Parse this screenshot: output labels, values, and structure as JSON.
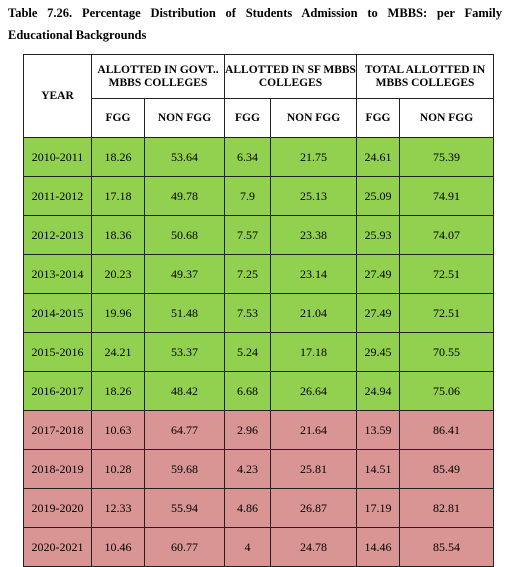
{
  "caption": {
    "text": "Table 7.26. Percentage Distribution of Students Admission to MBBS: per Family Educational Backgrounds"
  },
  "table": {
    "year_header": "YEAR",
    "groups": [
      {
        "label": "ALLOTTED IN GOVT.. MBBS COLLEGES"
      },
      {
        "label": "ALLOTTED IN SF MBBS COLLEGES"
      },
      {
        "label": "TOTAL ALLOTTED IN MBBS COLLEGES"
      }
    ],
    "subheaders": [
      "FGG",
      "NON FGG",
      "FGG",
      "NON FGG",
      "FGG",
      "NON FGG"
    ],
    "row_colors": {
      "highlight_a": "#92d050",
      "highlight_b": "#d99594"
    },
    "rows": [
      {
        "year": "2010-2011",
        "values": [
          "18.26",
          "53.64",
          "6.34",
          "21.75",
          "24.61",
          "75.39"
        ]
      },
      {
        "year": "2011-2012",
        "values": [
          "17.18",
          "49.78",
          "7.9",
          "25.13",
          "25.09",
          "74.91"
        ]
      },
      {
        "year": "2012-2013",
        "values": [
          "18.36",
          "50.68",
          "7.57",
          "23.38",
          "25.93",
          "74.07"
        ]
      },
      {
        "year": "2013-2014",
        "values": [
          "20.23",
          "49.37",
          "7.25",
          "23.14",
          "27.49",
          "72.51"
        ]
      },
      {
        "year": "2014-2015",
        "values": [
          "19.96",
          "51.48",
          "7.53",
          "21.04",
          "27.49",
          "72.51"
        ]
      },
      {
        "year": "2015-2016",
        "values": [
          "24.21",
          "53.37",
          "5.24",
          "17.18",
          "29.45",
          "70.55"
        ]
      },
      {
        "year": "2016-2017",
        "values": [
          "18.26",
          "48.42",
          "6.68",
          "26.64",
          "24.94",
          "75.06"
        ]
      },
      {
        "year": "2017-2018",
        "values": [
          "10.63",
          "64.77",
          "2.96",
          "21.64",
          "13.59",
          "86.41"
        ]
      },
      {
        "year": "2018-2019",
        "values": [
          "10.28",
          "59.68",
          "4.23",
          "25.81",
          "14.51",
          "85.49"
        ]
      },
      {
        "year": "2019-2020",
        "values": [
          "12.33",
          "55.94",
          "4.86",
          "26.87",
          "17.19",
          "82.81"
        ]
      },
      {
        "year": "2020-2021",
        "values": [
          "10.46",
          "60.77",
          "4",
          "24.78",
          "14.46",
          "85.54"
        ]
      }
    ]
  }
}
